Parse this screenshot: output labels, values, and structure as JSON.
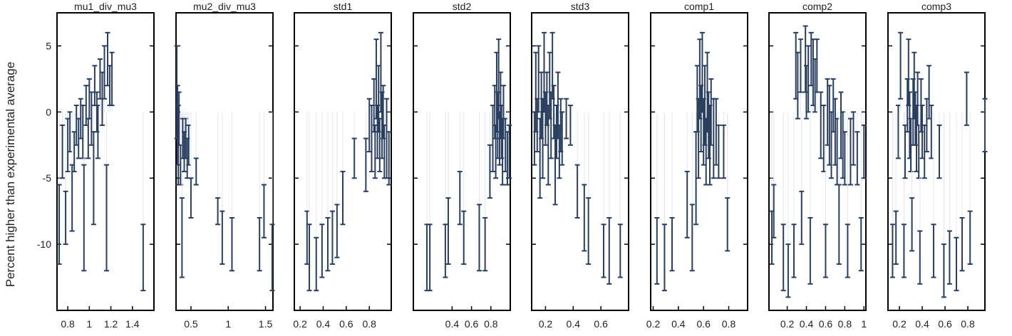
{
  "chart_data": {
    "type": "scatter",
    "ylabel": "Percent higher than experimental average",
    "ylim": [
      -15,
      7.5
    ],
    "y_ticks": [
      5,
      0,
      -5,
      -10
    ],
    "marker_color": "#2a3f5f",
    "background": "#ffffff",
    "panels": [
      {
        "title": "mu1_div_mu3",
        "xlim": [
          0.7,
          1.6
        ],
        "x_ticks": [
          0.8,
          1,
          1.2,
          1.4
        ],
        "x_tick_labels": [
          "0.8",
          "1",
          "1.2",
          "1.4"
        ],
        "points": [
          [
            0.72,
            -8.5,
            3
          ],
          [
            0.75,
            -3.0,
            2
          ],
          [
            0.78,
            -8.0,
            2
          ],
          [
            0.8,
            -2.5,
            2
          ],
          [
            0.82,
            -1.5,
            1.5
          ],
          [
            0.84,
            -6.5,
            2.5
          ],
          [
            0.86,
            -3.0,
            1.5
          ],
          [
            0.88,
            -1.0,
            1.5
          ],
          [
            0.9,
            -2.0,
            1.5
          ],
          [
            0.92,
            -0.5,
            1.5
          ],
          [
            0.94,
            -1.5,
            2
          ],
          [
            0.95,
            -8.0,
            4
          ],
          [
            0.97,
            0.5,
            1.5
          ],
          [
            0.99,
            -2.0,
            1.5
          ],
          [
            1.0,
            1.0,
            1.5
          ],
          [
            1.02,
            -0.5,
            2
          ],
          [
            1.04,
            -5.0,
            3.5
          ],
          [
            1.05,
            2.0,
            1.5
          ],
          [
            1.07,
            0.0,
            1.5
          ],
          [
            1.08,
            -1.5,
            2
          ],
          [
            1.1,
            2.5,
            1.5
          ],
          [
            1.12,
            1.0,
            2
          ],
          [
            1.14,
            3.0,
            2
          ],
          [
            1.16,
            -8.0,
            4
          ],
          [
            1.17,
            4.0,
            2
          ],
          [
            1.19,
            2.0,
            1.5
          ],
          [
            1.21,
            2.5,
            2
          ],
          [
            1.5,
            -11.0,
            2.5
          ]
        ]
      },
      {
        "title": "mu2_div_mu3",
        "xlim": [
          0.3,
          1.6
        ],
        "x_ticks": [
          0.5,
          1,
          1.5
        ],
        "x_tick_labels": [
          "0.5",
          "1",
          "1.5"
        ],
        "points": [
          [
            0.31,
            1.5,
            3.5
          ],
          [
            0.32,
            -1.0,
            3
          ],
          [
            0.33,
            -2.5,
            3
          ],
          [
            0.34,
            -0.5,
            2
          ],
          [
            0.36,
            -4.0,
            1.5
          ],
          [
            0.38,
            -9.5,
            3
          ],
          [
            0.39,
            -2.0,
            1.5
          ],
          [
            0.41,
            -3.0,
            1.5
          ],
          [
            0.43,
            -2.0,
            1.5
          ],
          [
            0.45,
            -3.5,
            1.5
          ],
          [
            0.47,
            -2.5,
            1.5
          ],
          [
            0.5,
            -6.5,
            1.5
          ],
          [
            0.57,
            -4.5,
            1
          ],
          [
            0.86,
            -7.5,
            1
          ],
          [
            0.92,
            -9.5,
            2
          ],
          [
            1.05,
            -10.0,
            2
          ],
          [
            1.42,
            -10.0,
            2
          ],
          [
            1.48,
            -7.5,
            2
          ],
          [
            1.59,
            -11.0,
            2.5
          ]
        ]
      },
      {
        "title": "std1",
        "xlim": [
          0.15,
          0.99
        ],
        "x_ticks": [
          0.2,
          0.4,
          0.6,
          0.8
        ],
        "x_tick_labels": [
          "0.2",
          "0.4",
          "0.6",
          "0.8"
        ],
        "points": [
          [
            0.26,
            -9.5,
            2
          ],
          [
            0.28,
            -11.0,
            2.5
          ],
          [
            0.34,
            -11.5,
            2
          ],
          [
            0.39,
            -10.5,
            2
          ],
          [
            0.44,
            -10.0,
            2
          ],
          [
            0.48,
            -9.5,
            2
          ],
          [
            0.52,
            -9.0,
            2
          ],
          [
            0.57,
            -6.5,
            2
          ],
          [
            0.67,
            -3.5,
            1.5
          ],
          [
            0.77,
            -4.0,
            2
          ],
          [
            0.8,
            -1.0,
            2
          ],
          [
            0.82,
            -2.0,
            2.5
          ],
          [
            0.84,
            0.5,
            2
          ],
          [
            0.85,
            -3.0,
            2
          ],
          [
            0.86,
            2.5,
            3
          ],
          [
            0.87,
            -1.5,
            2
          ],
          [
            0.88,
            1.0,
            2.5
          ],
          [
            0.89,
            -2.5,
            2
          ],
          [
            0.9,
            3.0,
            3
          ],
          [
            0.91,
            -1.0,
            2.5
          ],
          [
            0.92,
            0.0,
            2
          ],
          [
            0.93,
            -3.0,
            2
          ],
          [
            0.95,
            -2.0,
            3
          ],
          [
            0.97,
            -3.5,
            2
          ]
        ]
      },
      {
        "title": "std2",
        "xlim": [
          0.0,
          1.0
        ],
        "x_ticks": [
          0.4,
          0.6,
          0.8
        ],
        "x_tick_labels": [
          "0.4",
          "0.6",
          "0.8"
        ],
        "points": [
          [
            0.14,
            -11.0,
            2.5
          ],
          [
            0.17,
            -11.0,
            2.5
          ],
          [
            0.33,
            -10.5,
            2
          ],
          [
            0.36,
            -9.0,
            2.5
          ],
          [
            0.48,
            -6.5,
            2
          ],
          [
            0.52,
            -9.5,
            2
          ],
          [
            0.68,
            -9.5,
            2.5
          ],
          [
            0.74,
            -10.0,
            2
          ],
          [
            0.79,
            -4.5,
            2
          ],
          [
            0.82,
            -2.0,
            2.5
          ],
          [
            0.84,
            0.0,
            2
          ],
          [
            0.85,
            -3.0,
            2
          ],
          [
            0.86,
            1.5,
            3
          ],
          [
            0.87,
            -1.0,
            2.5
          ],
          [
            0.88,
            2.5,
            3
          ],
          [
            0.89,
            -2.0,
            2
          ],
          [
            0.9,
            0.5,
            2.5
          ],
          [
            0.91,
            -1.5,
            2
          ],
          [
            0.92,
            -3.0,
            2.5
          ],
          [
            0.93,
            0.0,
            2
          ],
          [
            0.95,
            -2.5,
            2
          ],
          [
            0.97,
            -3.5,
            2
          ],
          [
            0.99,
            -3.0,
            2
          ]
        ]
      },
      {
        "title": "std3",
        "xlim": [
          0.1,
          0.8
        ],
        "x_ticks": [
          0.2,
          0.4,
          0.6
        ],
        "x_tick_labels": [
          "0.2",
          "0.4",
          "0.6"
        ],
        "points": [
          [
            0.12,
            -2.0,
            2
          ],
          [
            0.13,
            1.5,
            3
          ],
          [
            0.14,
            -1.0,
            2
          ],
          [
            0.15,
            2.5,
            2.5
          ],
          [
            0.16,
            -3.5,
            3
          ],
          [
            0.17,
            0.5,
            2.5
          ],
          [
            0.18,
            -2.0,
            3
          ],
          [
            0.19,
            3.0,
            3
          ],
          [
            0.2,
            -0.5,
            2
          ],
          [
            0.21,
            1.0,
            2
          ],
          [
            0.22,
            -2.5,
            3
          ],
          [
            0.23,
            2.0,
            2.5
          ],
          [
            0.24,
            -1.0,
            2.5
          ],
          [
            0.25,
            3.5,
            2.5
          ],
          [
            0.26,
            0.0,
            2
          ],
          [
            0.27,
            -4.0,
            3
          ],
          [
            0.28,
            -1.5,
            2
          ],
          [
            0.29,
            0.5,
            2.5
          ],
          [
            0.3,
            -3.0,
            2
          ],
          [
            0.31,
            -1.0,
            2
          ],
          [
            0.32,
            -2.0,
            2
          ],
          [
            0.35,
            -0.5,
            1.5
          ],
          [
            0.38,
            -1.0,
            1.5
          ],
          [
            0.43,
            -6.0,
            2
          ],
          [
            0.48,
            -8.0,
            2.5
          ],
          [
            0.51,
            -9.0,
            2.5
          ],
          [
            0.62,
            -10.5,
            2
          ],
          [
            0.66,
            -10.5,
            2.5
          ],
          [
            0.74,
            -10.5,
            2
          ]
        ]
      },
      {
        "title": "comp1",
        "xlim": [
          0.18,
          0.95
        ],
        "x_ticks": [
          0.2,
          0.4,
          0.6,
          0.8
        ],
        "x_tick_labels": [
          "0.2",
          "0.4",
          "0.6",
          "0.8"
        ],
        "points": [
          [
            0.23,
            -10.5,
            2.5
          ],
          [
            0.29,
            -11.0,
            2.5
          ],
          [
            0.35,
            -10.0,
            2
          ],
          [
            0.47,
            -7.0,
            2.5
          ],
          [
            0.51,
            -9.5,
            2.5
          ],
          [
            0.54,
            -5.0,
            3.5
          ],
          [
            0.55,
            1.0,
            2.5
          ],
          [
            0.56,
            -2.0,
            3
          ],
          [
            0.57,
            2.5,
            3
          ],
          [
            0.58,
            -0.5,
            2.5
          ],
          [
            0.59,
            3.0,
            3
          ],
          [
            0.6,
            -1.5,
            2.5
          ],
          [
            0.61,
            0.5,
            3
          ],
          [
            0.62,
            -3.0,
            2.5
          ],
          [
            0.63,
            1.5,
            3
          ],
          [
            0.64,
            -1.0,
            2.5
          ],
          [
            0.65,
            -2.5,
            3
          ],
          [
            0.66,
            0.0,
            2.5
          ],
          [
            0.68,
            -2.0,
            3
          ],
          [
            0.7,
            -1.5,
            2.5
          ],
          [
            0.72,
            -3.0,
            2
          ],
          [
            0.76,
            -3.0,
            2
          ],
          [
            0.79,
            -8.5,
            2
          ]
        ]
      },
      {
        "title": "comp2",
        "xlim": [
          0.01,
          1.02
        ],
        "x_ticks": [
          0.2,
          0.4,
          0.6,
          0.8,
          1
        ],
        "x_tick_labels": [
          "0.2",
          "0.4",
          "0.6",
          "0.8",
          "1"
        ],
        "points": [
          [
            0.04,
            -9.5,
            2
          ],
          [
            0.06,
            -7.5,
            2
          ],
          [
            0.16,
            -11.0,
            2.5
          ],
          [
            0.21,
            -12.0,
            2
          ],
          [
            0.27,
            -10.5,
            2
          ],
          [
            0.29,
            3.5,
            2.5
          ],
          [
            0.31,
            2.0,
            2.5
          ],
          [
            0.34,
            3.5,
            2
          ],
          [
            0.35,
            -8.0,
            2
          ],
          [
            0.39,
            4.0,
            2.5
          ],
          [
            0.4,
            1.5,
            2
          ],
          [
            0.42,
            2.5,
            2.5
          ],
          [
            0.44,
            -10.5,
            2.5
          ],
          [
            0.45,
            4.0,
            2
          ],
          [
            0.47,
            3.0,
            2.5
          ],
          [
            0.49,
            2.0,
            2
          ],
          [
            0.51,
            3.5,
            2
          ],
          [
            0.55,
            -1.0,
            2.5
          ],
          [
            0.58,
            -2.0,
            2.5
          ],
          [
            0.6,
            -10.5,
            2
          ],
          [
            0.62,
            0.0,
            2.5
          ],
          [
            0.64,
            -1.0,
            3
          ],
          [
            0.66,
            -2.5,
            2.5
          ],
          [
            0.68,
            0.5,
            2
          ],
          [
            0.7,
            -1.5,
            2.5
          ],
          [
            0.72,
            -3.0,
            2.5
          ],
          [
            0.74,
            -8.5,
            3
          ],
          [
            0.76,
            -1.0,
            2.5
          ],
          [
            0.78,
            -2.5,
            2.5
          ],
          [
            0.8,
            -3.5,
            2
          ],
          [
            0.83,
            -10.5,
            2
          ],
          [
            0.86,
            -3.0,
            2.5
          ],
          [
            0.89,
            -2.0,
            2
          ],
          [
            0.93,
            -3.5,
            2
          ],
          [
            0.97,
            -10.0,
            2
          ],
          [
            1.0,
            -3.0,
            2
          ]
        ]
      },
      {
        "title": "comp3",
        "xlim": [
          0.1,
          0.95
        ],
        "x_ticks": [
          0.2,
          0.4,
          0.6,
          0.8
        ],
        "x_tick_labels": [
          "0.2",
          "0.4",
          "0.6",
          "0.8"
        ],
        "points": [
          [
            0.14,
            -10.5,
            2
          ],
          [
            0.17,
            -9.5,
            2
          ],
          [
            0.19,
            -1.5,
            2
          ],
          [
            0.21,
            3.5,
            2.5
          ],
          [
            0.24,
            -10.5,
            2
          ],
          [
            0.25,
            -3.0,
            2
          ],
          [
            0.27,
            0.5,
            2
          ],
          [
            0.28,
            3.0,
            2.5
          ],
          [
            0.29,
            -1.0,
            2.5
          ],
          [
            0.3,
            -2.5,
            2
          ],
          [
            0.31,
            -8.5,
            2
          ],
          [
            0.32,
            0.0,
            2.5
          ],
          [
            0.33,
            2.0,
            2.5
          ],
          [
            0.34,
            -0.5,
            2
          ],
          [
            0.35,
            -2.0,
            2.5
          ],
          [
            0.36,
            1.0,
            2
          ],
          [
            0.37,
            -3.0,
            2
          ],
          [
            0.38,
            -11.0,
            2
          ],
          [
            0.39,
            0.5,
            2
          ],
          [
            0.4,
            -1.5,
            2
          ],
          [
            0.42,
            -3.0,
            2
          ],
          [
            0.44,
            -1.0,
            2
          ],
          [
            0.46,
            1.5,
            2
          ],
          [
            0.48,
            -1.5,
            2
          ],
          [
            0.5,
            -10.5,
            2
          ],
          [
            0.55,
            -3.0,
            2
          ],
          [
            0.59,
            -12.0,
            2
          ],
          [
            0.64,
            -11.0,
            2
          ],
          [
            0.7,
            -11.5,
            2
          ],
          [
            0.75,
            -10.0,
            2
          ],
          [
            0.79,
            1.0,
            2
          ],
          [
            0.82,
            -9.5,
            2
          ],
          [
            0.95,
            -1.0,
            2
          ]
        ]
      }
    ]
  }
}
